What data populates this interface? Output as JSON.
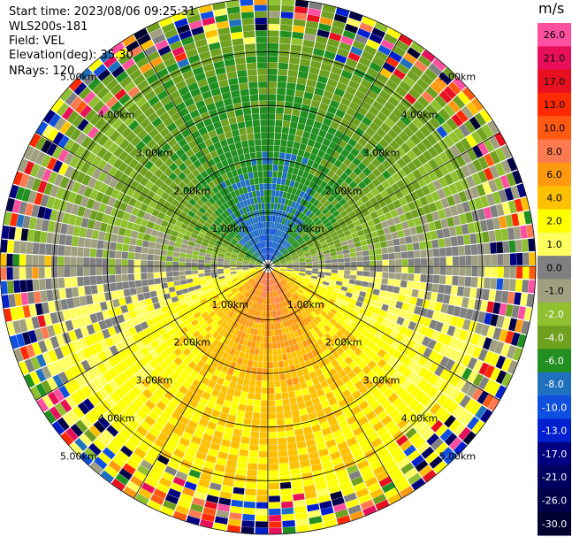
{
  "header": {
    "start_time": "Start time: 2023/08/06 09:25:31",
    "station": "WLS200s-181",
    "field": "Field: VEL",
    "elevation": "Elevation(deg): 35.30",
    "nrays": "NRays: 120"
  },
  "colorbar": {
    "unit": "m/s",
    "ticks": [
      "26.0",
      "21.0",
      "17.0",
      "13.0",
      "10.0",
      "8.0",
      "6.0",
      "4.0",
      "2.0",
      "1.0",
      "0.0",
      "-1.0",
      "-2.0",
      "-4.0",
      "-6.0",
      "-8.0",
      "-10.0",
      "-13.0",
      "-17.0",
      "-21.0",
      "-26.0",
      "-30.0"
    ],
    "colors": [
      "#ff4fa0",
      "#e8105a",
      "#e81020",
      "#ff2a00",
      "#ff5a10",
      "#ff7a50",
      "#ff9a10",
      "#ffc000",
      "#ffff00",
      "#ffff60",
      "#808080",
      "#a0a080",
      "#90c030",
      "#70a020",
      "#229020",
      "#2070c0",
      "#1050e0",
      "#0020d0",
      "#000080",
      "#000060",
      "#00004a",
      "#000030"
    ]
  },
  "chart_data": {
    "type": "ppi",
    "field": "VEL",
    "unit": "m/s",
    "nrays": 120,
    "elevation_deg": 35.3,
    "range_rings_km": [
      1.0,
      2.0,
      3.0,
      4.0,
      5.0
    ],
    "ring_labels": [
      "1.00km",
      "2.00km",
      "3.00km",
      "4.00km",
      "5.00km"
    ],
    "max_range_km": 5.0,
    "spokes_deg": [
      0,
      30,
      60,
      90,
      120,
      150,
      180,
      210,
      240,
      270,
      300,
      330
    ],
    "ring_label_bearings_deg": [
      315,
      45,
      135,
      225
    ],
    "ring_label_radii_km": [
      1.0,
      2.0,
      3.0,
      4.0,
      5.0
    ],
    "wind_pattern": {
      "toward_bearing_deg": 0,
      "max_speed_ms": 10.0,
      "noise_start_km": 4.0
    }
  }
}
